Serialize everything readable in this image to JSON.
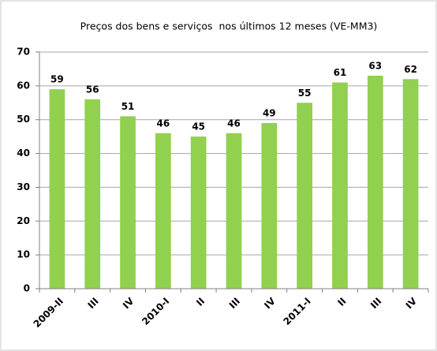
{
  "chart_data": {
    "type": "bar",
    "title": "Preços dos bens e serviços  nos últimos 12 meses (VE-MM3)",
    "categories": [
      "2009-II",
      "III",
      "IV",
      "2010-I",
      "II",
      "III",
      "IV",
      "2011-I",
      "II",
      "III",
      "IV"
    ],
    "values": [
      59,
      56,
      51,
      46,
      45,
      46,
      49,
      55,
      61,
      63,
      62
    ],
    "color": "#92d050",
    "ylim": [
      0,
      70
    ],
    "yticks": [
      0,
      10,
      20,
      30,
      40,
      50,
      60,
      70
    ],
    "grid": true
  }
}
